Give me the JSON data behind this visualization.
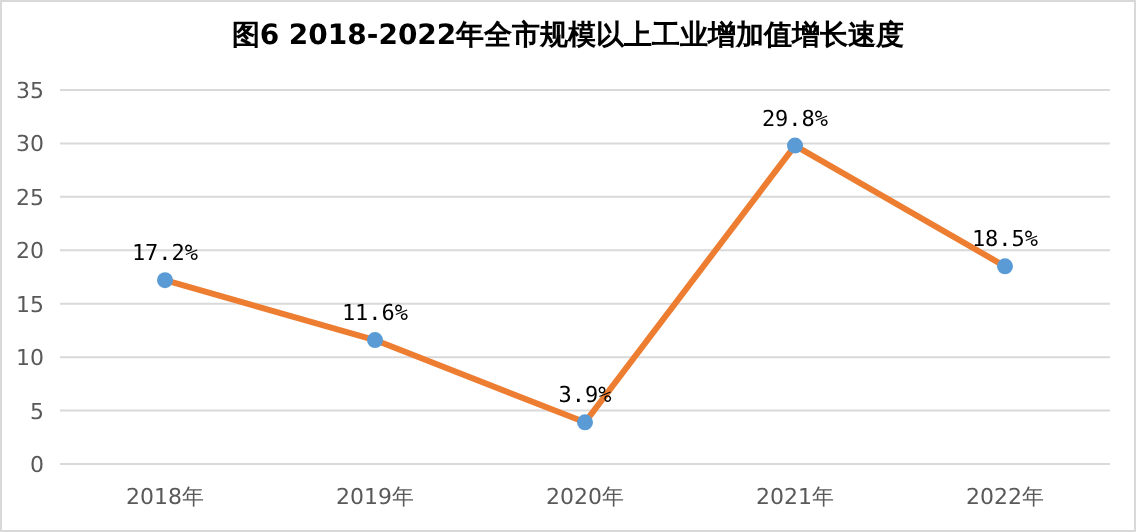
{
  "chart_data": {
    "type": "line",
    "title": "图6  2018-2022年全市规模以上工业增加值增长速度",
    "categories": [
      "2018年",
      "2019年",
      "2020年",
      "2021年",
      "2022年"
    ],
    "series": [
      {
        "color": "#ed7d31",
        "colors": [
          "#5b9bd5",
          "#5b9bd5",
          "#5b9bd5",
          "#5b9bd5",
          "#5b9bd5"
        ],
        "values": [
          17.2,
          11.6,
          3.9,
          29.8,
          18.5
        ],
        "value_labels": [
          "17.2%",
          "11.6%",
          "3.9%",
          "29.8%",
          "18.5%"
        ]
      }
    ],
    "ylim": [
      0,
      35
    ],
    "yticks": [
      0,
      5,
      10,
      15,
      20,
      25,
      30,
      35
    ],
    "grid": "y",
    "marker": "circle",
    "line_style": "solid"
  }
}
